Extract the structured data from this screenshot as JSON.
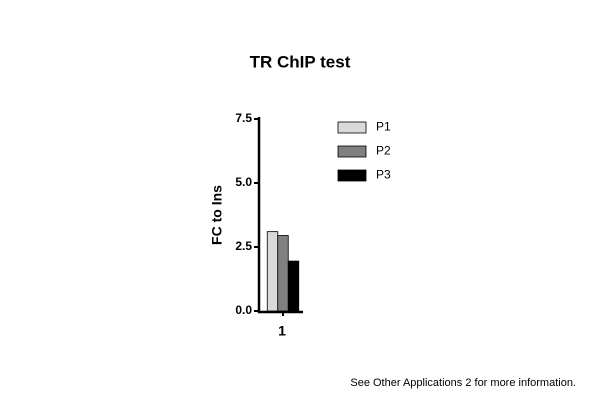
{
  "chart_data": {
    "type": "bar",
    "title": "TR ChIP test",
    "y_label": "FC to Ins",
    "categories": [
      "1"
    ],
    "series": [
      {
        "name": "P1",
        "color": "#d9d9d9",
        "values": [
          3.1
        ]
      },
      {
        "name": "P2",
        "color": "#808080",
        "values": [
          2.95
        ]
      },
      {
        "name": "P3",
        "color": "#000000",
        "values": [
          1.95
        ]
      }
    ],
    "ylim": [
      0,
      7.5
    ],
    "yticks": [
      {
        "value": 0,
        "label": "0.0"
      },
      2.5,
      {
        "value": 5,
        "label": "5.0"
      },
      7.5
    ],
    "note": "See Other Applications 2 for more information."
  }
}
